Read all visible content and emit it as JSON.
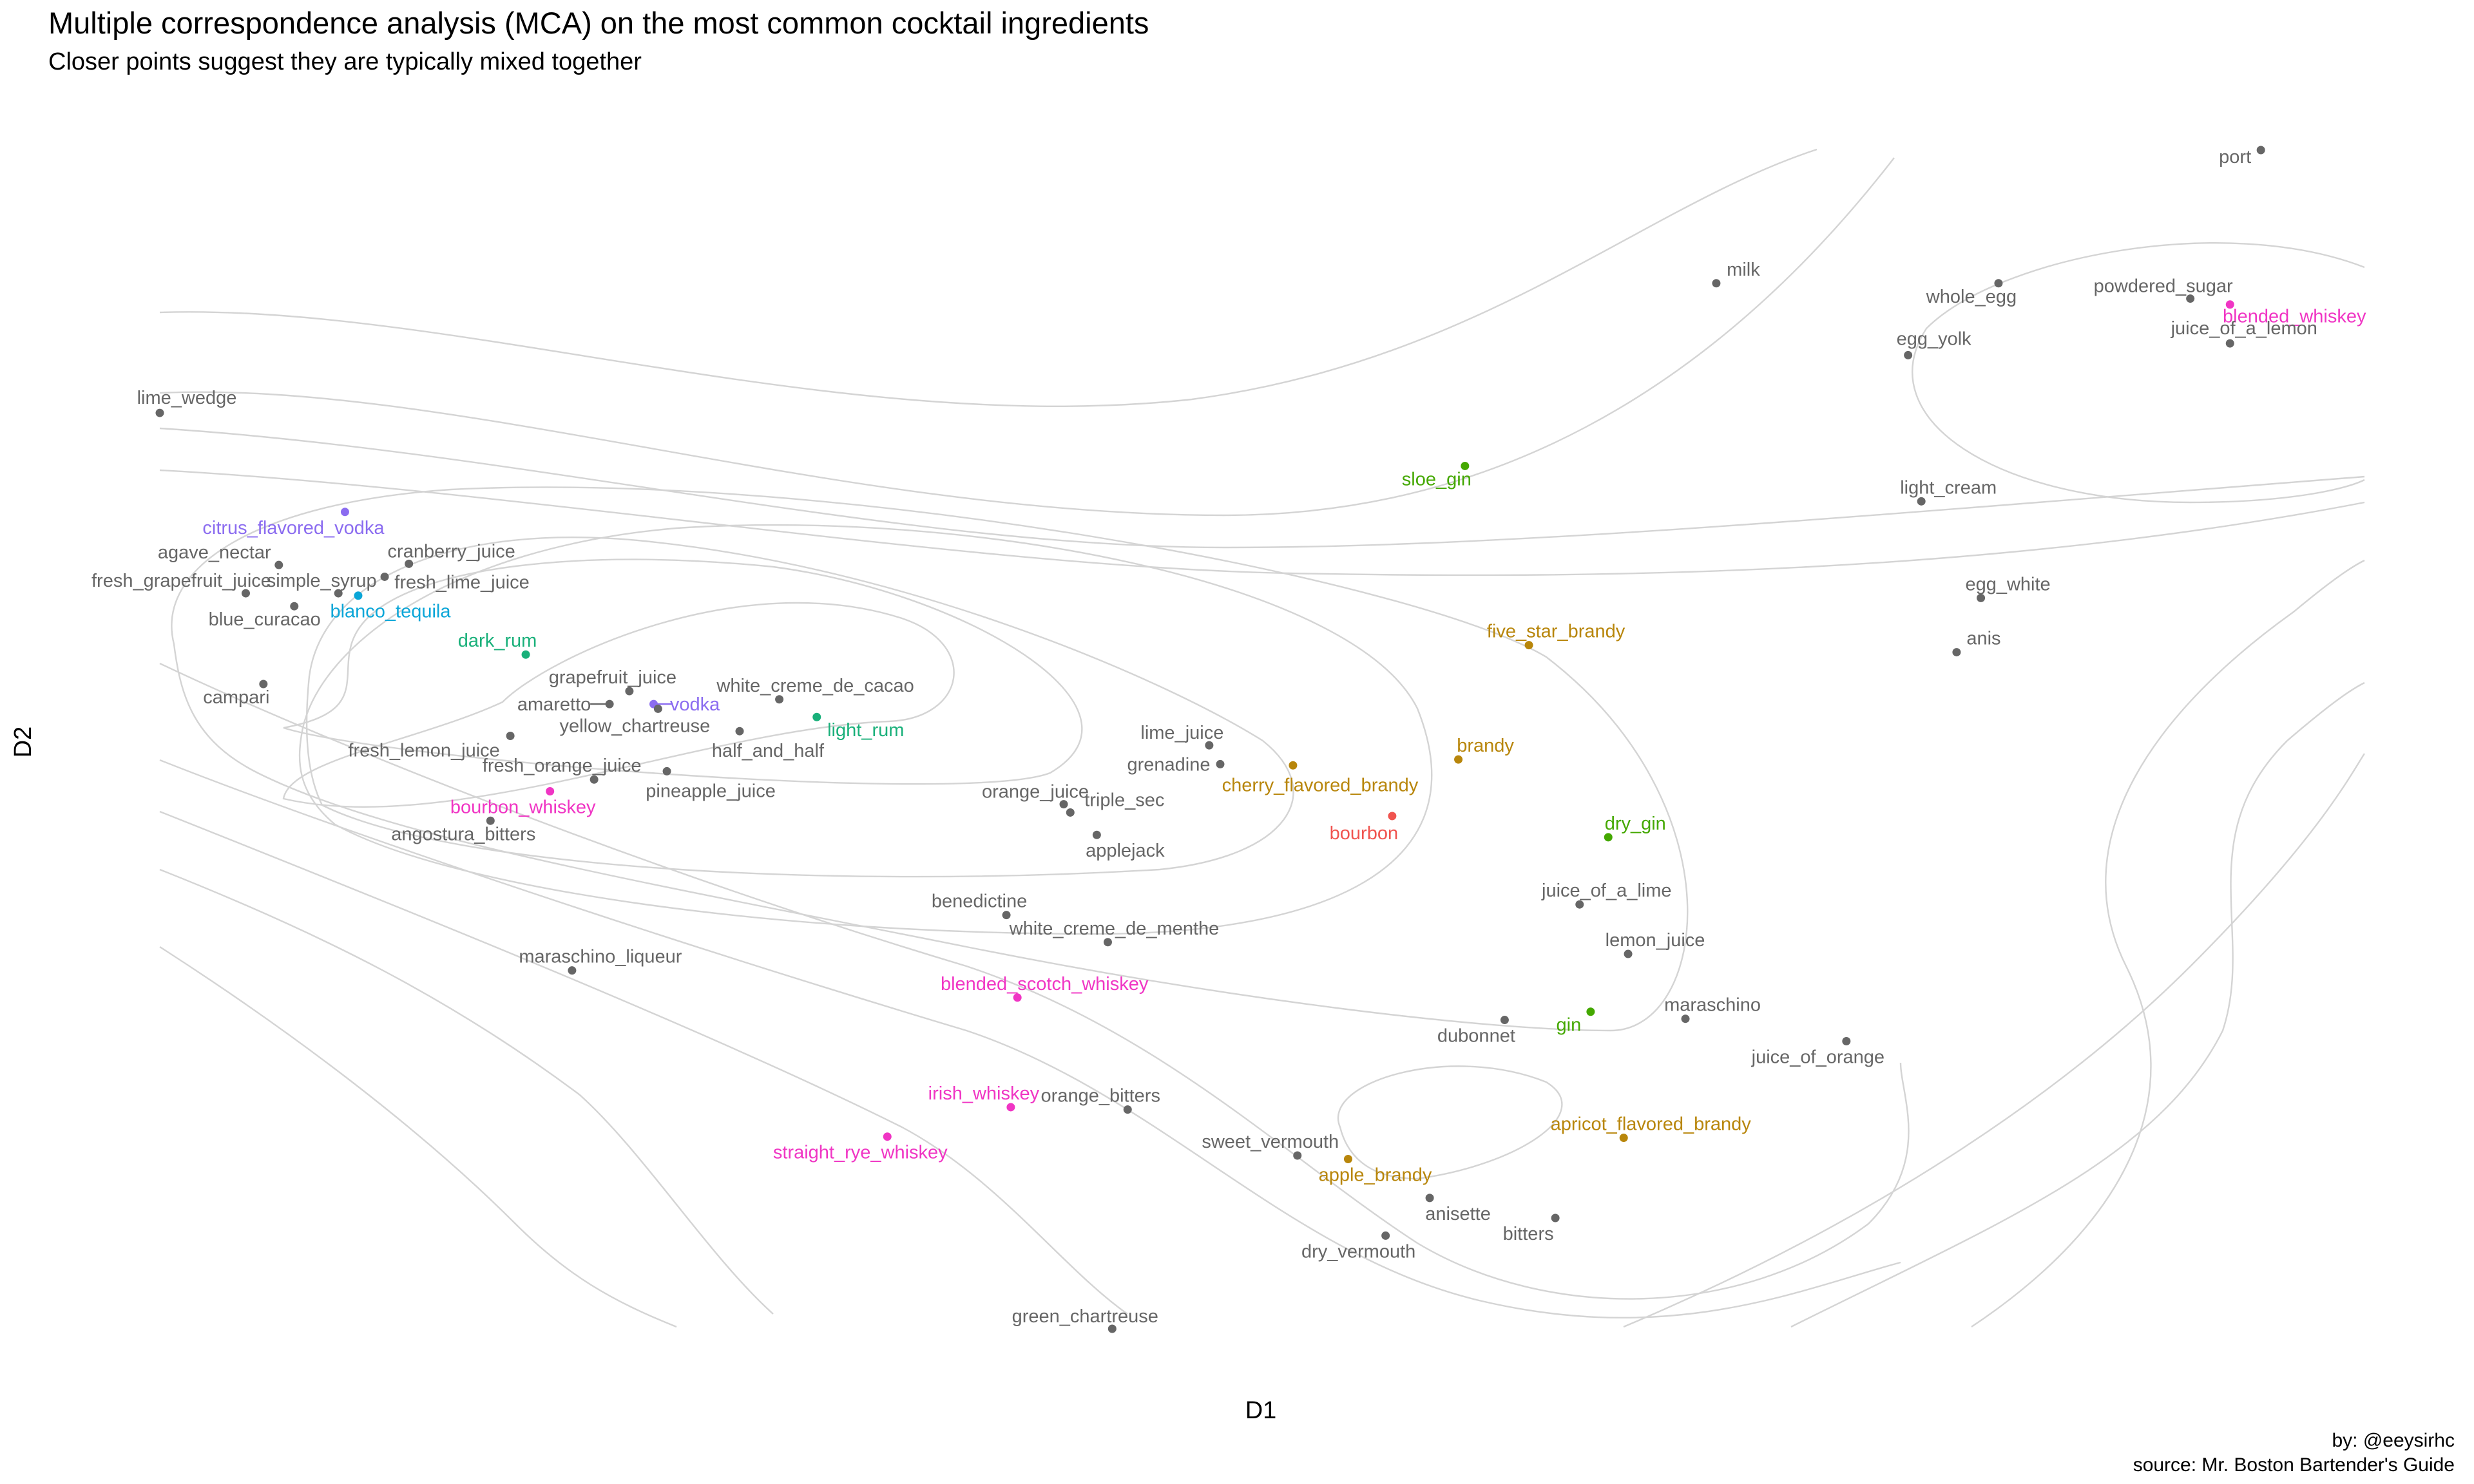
{
  "chart_data": {
    "type": "scatter",
    "title": "Multiple correspondence analysis (MCA) on the most common cocktail ingredients",
    "subtitle": "Closer points suggest they are typically mixed together",
    "xlabel": "D1",
    "ylabel": "D2",
    "xlim": [
      0,
      100
    ],
    "ylim": [
      0,
      100
    ],
    "grid": false,
    "contours": true,
    "caption": [
      "by: @eeysirhc",
      "source: Mr. Boston Bartender's Guide"
    ],
    "colors": {
      "other": "#666666",
      "vodka": "#8b6cf0",
      "tequila": "#0aa6d8",
      "rum": "#19b07a",
      "whiskey": "#f035c4",
      "brandy": "#b8860b",
      "gin": "#44a800",
      "bourbon": "#f0544f",
      "contour": "#d4d4d4"
    },
    "points": [
      {
        "label": "port",
        "x": 95.3,
        "y": 100.0,
        "group": "other"
      },
      {
        "label": "milk",
        "x": 70.6,
        "y": 88.7,
        "group": "other"
      },
      {
        "label": "whole_egg",
        "x": 83.4,
        "y": 88.7,
        "group": "other"
      },
      {
        "label": "powdered_sugar",
        "x": 92.1,
        "y": 87.4,
        "group": "other"
      },
      {
        "label": "blended_whiskey",
        "x": 93.9,
        "y": 86.9,
        "group": "whiskey"
      },
      {
        "label": "juice_of_a_lemon",
        "x": 93.9,
        "y": 83.6,
        "group": "other"
      },
      {
        "label": "egg_yolk",
        "x": 79.3,
        "y": 82.6,
        "group": "other"
      },
      {
        "label": "lime_wedge",
        "x": 0.0,
        "y": 77.7,
        "group": "other"
      },
      {
        "label": "sloe_gin",
        "x": 59.2,
        "y": 73.2,
        "group": "gin"
      },
      {
        "label": "light_cream",
        "x": 79.9,
        "y": 70.2,
        "group": "other"
      },
      {
        "label": "citrus_flavored_vodka",
        "x": 8.4,
        "y": 69.3,
        "group": "vodka"
      },
      {
        "label": "agave_nectar",
        "x": 5.4,
        "y": 64.8,
        "group": "other"
      },
      {
        "label": "cranberry_juice",
        "x": 11.3,
        "y": 64.9,
        "group": "other"
      },
      {
        "label": "fresh_lime_juice",
        "x": 10.2,
        "y": 63.8,
        "group": "other"
      },
      {
        "label": "fresh_grapefruit_juice",
        "x": 3.9,
        "y": 62.4,
        "group": "other"
      },
      {
        "label": "simple_syrup",
        "x": 8.1,
        "y": 62.4,
        "group": "other"
      },
      {
        "label": "blanco_tequila",
        "x": 9.0,
        "y": 62.2,
        "group": "tequila"
      },
      {
        "label": "blue_curacao",
        "x": 6.1,
        "y": 61.3,
        "group": "other"
      },
      {
        "label": "egg_white",
        "x": 82.6,
        "y": 62.0,
        "group": "other"
      },
      {
        "label": "anis",
        "x": 81.5,
        "y": 57.4,
        "group": "other"
      },
      {
        "label": "five_star_brandy",
        "x": 62.1,
        "y": 58.0,
        "group": "brandy"
      },
      {
        "label": "dark_rum",
        "x": 16.6,
        "y": 57.2,
        "group": "rum"
      },
      {
        "label": "campari",
        "x": 4.7,
        "y": 54.7,
        "group": "other"
      },
      {
        "label": "grapefruit_juice",
        "x": 21.3,
        "y": 54.1,
        "group": "other"
      },
      {
        "label": "white_creme_de_cacao",
        "x": 28.1,
        "y": 53.4,
        "group": "other"
      },
      {
        "label": "amaretto",
        "x": 20.4,
        "y": 53.0,
        "group": "other"
      },
      {
        "label": "vodka",
        "x": 22.4,
        "y": 53.0,
        "group": "vodka"
      },
      {
        "label": "yellow_chartreuse",
        "x": 22.6,
        "y": 52.6,
        "group": "other"
      },
      {
        "label": "light_rum",
        "x": 29.8,
        "y": 51.9,
        "group": "rum"
      },
      {
        "label": "half_and_half",
        "x": 26.3,
        "y": 50.7,
        "group": "other"
      },
      {
        "label": "fresh_lemon_juice",
        "x": 15.9,
        "y": 50.3,
        "group": "other"
      },
      {
        "label": "lime_juice",
        "x": 47.6,
        "y": 49.5,
        "group": "other"
      },
      {
        "label": "brandy",
        "x": 58.9,
        "y": 48.3,
        "group": "brandy"
      },
      {
        "label": "grenadine",
        "x": 48.1,
        "y": 47.9,
        "group": "other"
      },
      {
        "label": "cherry_flavored_brandy",
        "x": 51.4,
        "y": 47.8,
        "group": "brandy"
      },
      {
        "label": "pineapple_juice",
        "x": 23.0,
        "y": 47.3,
        "group": "other"
      },
      {
        "label": "fresh_orange_juice",
        "x": 19.7,
        "y": 46.6,
        "group": "other"
      },
      {
        "label": "bourbon_whiskey",
        "x": 17.7,
        "y": 45.6,
        "group": "whiskey"
      },
      {
        "label": "orange_juice",
        "x": 41.0,
        "y": 44.5,
        "group": "other"
      },
      {
        "label": "triple_sec",
        "x": 41.3,
        "y": 43.8,
        "group": "other"
      },
      {
        "label": "bourbon",
        "x": 55.9,
        "y": 43.5,
        "group": "bourbon"
      },
      {
        "label": "angostura_bitters",
        "x": 15.0,
        "y": 43.1,
        "group": "other"
      },
      {
        "label": "applejack",
        "x": 42.5,
        "y": 41.9,
        "group": "other"
      },
      {
        "label": "dry_gin",
        "x": 65.7,
        "y": 41.7,
        "group": "gin"
      },
      {
        "label": "juice_of_a_lime",
        "x": 64.4,
        "y": 36.0,
        "group": "other"
      },
      {
        "label": "benedictine",
        "x": 38.4,
        "y": 35.1,
        "group": "other"
      },
      {
        "label": "white_creme_de_menthe",
        "x": 43.0,
        "y": 32.8,
        "group": "other"
      },
      {
        "label": "lemon_juice",
        "x": 66.6,
        "y": 31.8,
        "group": "other"
      },
      {
        "label": "maraschino_liqueur",
        "x": 18.7,
        "y": 30.4,
        "group": "other"
      },
      {
        "label": "blended_scotch_whiskey",
        "x": 38.9,
        "y": 28.1,
        "group": "whiskey"
      },
      {
        "label": "gin",
        "x": 64.9,
        "y": 26.9,
        "group": "gin"
      },
      {
        "label": "maraschino",
        "x": 69.2,
        "y": 26.3,
        "group": "other"
      },
      {
        "label": "dubonnet",
        "x": 61.0,
        "y": 26.2,
        "group": "other"
      },
      {
        "label": "juice_of_orange",
        "x": 76.5,
        "y": 24.4,
        "group": "other"
      },
      {
        "label": "orange_bitters",
        "x": 43.9,
        "y": 18.6,
        "group": "other"
      },
      {
        "label": "irish_whiskey",
        "x": 38.6,
        "y": 18.8,
        "group": "whiskey"
      },
      {
        "label": "apricot_flavored_brandy",
        "x": 66.4,
        "y": 16.2,
        "group": "brandy"
      },
      {
        "label": "straight_rye_whiskey",
        "x": 33.0,
        "y": 16.3,
        "group": "whiskey"
      },
      {
        "label": "sweet_vermouth",
        "x": 51.6,
        "y": 14.7,
        "group": "other"
      },
      {
        "label": "apple_brandy",
        "x": 53.9,
        "y": 14.4,
        "group": "brandy"
      },
      {
        "label": "anisette",
        "x": 57.6,
        "y": 11.1,
        "group": "other"
      },
      {
        "label": "bitters",
        "x": 63.3,
        "y": 9.4,
        "group": "other"
      },
      {
        "label": "dry_vermouth",
        "x": 55.6,
        "y": 7.9,
        "group": "other"
      },
      {
        "label": "green_chartreuse",
        "x": 43.2,
        "y": 0.0,
        "group": "other"
      }
    ]
  }
}
